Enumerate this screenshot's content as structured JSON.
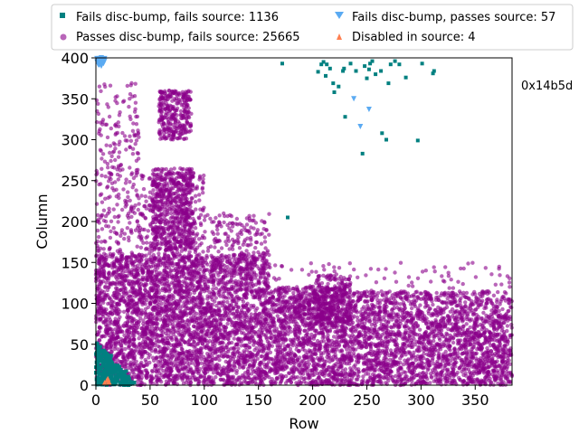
{
  "chart_data": {
    "type": "scatter",
    "xlabel": "Row",
    "ylabel": "Column",
    "xlim": [
      0,
      384
    ],
    "ylim": [
      0,
      400
    ],
    "x_ticks": [
      0,
      50,
      100,
      150,
      200,
      250,
      300,
      350
    ],
    "y_ticks": [
      0,
      50,
      100,
      150,
      200,
      250,
      300,
      350,
      400
    ],
    "grid": false,
    "legend_position": "top",
    "side_annotation": "0x14b5d",
    "series": [
      {
        "name": "Fails disc-bump, fails source: 1136",
        "marker": "square",
        "color": "#008080",
        "points": [
          [
            1,
            2
          ],
          [
            3,
            8
          ],
          [
            6,
            4
          ],
          [
            5,
            14
          ],
          [
            9,
            11
          ],
          [
            12,
            6
          ],
          [
            15,
            3
          ],
          [
            2,
            22
          ],
          [
            8,
            18
          ],
          [
            11,
            20
          ],
          [
            14,
            15
          ],
          [
            18,
            10
          ],
          [
            20,
            5
          ],
          [
            4,
            30
          ],
          [
            7,
            26
          ],
          [
            10,
            28
          ],
          [
            13,
            24
          ],
          [
            16,
            19
          ],
          [
            19,
            16
          ],
          [
            22,
            12
          ],
          [
            24,
            8
          ],
          [
            3,
            38
          ],
          [
            6,
            35
          ],
          [
            9,
            33
          ],
          [
            12,
            31
          ],
          [
            15,
            27
          ],
          [
            18,
            23
          ],
          [
            21,
            19
          ],
          [
            25,
            14
          ],
          [
            27,
            9
          ],
          [
            2,
            44
          ],
          [
            5,
            42
          ],
          [
            8,
            40
          ],
          [
            11,
            37
          ],
          [
            4,
            47
          ],
          [
            29,
            5
          ],
          [
            26,
            3
          ],
          [
            23,
            2
          ],
          [
            17,
            1
          ],
          [
            30,
            2
          ],
          [
            1,
            15
          ],
          [
            2,
            33
          ],
          [
            12,
            14
          ],
          [
            17,
            7
          ],
          [
            20,
            24
          ],
          [
            7,
            12
          ],
          [
            31,
            7
          ],
          [
            33,
            4
          ],
          [
            28,
            17
          ],
          [
            14,
            36
          ],
          [
            172,
            393
          ],
          [
            177,
            205
          ],
          [
            205,
            383
          ],
          [
            208,
            392
          ],
          [
            210,
            395
          ],
          [
            213,
            392
          ],
          [
            216,
            387
          ],
          [
            219,
            369
          ],
          [
            212,
            378
          ],
          [
            220,
            358
          ],
          [
            224,
            365
          ],
          [
            228,
            384
          ],
          [
            229,
            387
          ],
          [
            230,
            328
          ],
          [
            235,
            393
          ],
          [
            240,
            384
          ],
          [
            246,
            283
          ],
          [
            248,
            390
          ],
          [
            250,
            375
          ],
          [
            252,
            386
          ],
          [
            253,
            393
          ],
          [
            255,
            396
          ],
          [
            258,
            380
          ],
          [
            263,
            384
          ],
          [
            264,
            308
          ],
          [
            268,
            300
          ],
          [
            270,
            369
          ],
          [
            272,
            392
          ],
          [
            276,
            396
          ],
          [
            280,
            392
          ],
          [
            286,
            376
          ],
          [
            297,
            299
          ],
          [
            301,
            393
          ],
          [
            311,
            381
          ],
          [
            312,
            384
          ]
        ]
      },
      {
        "name": "Passes disc-bump, fails source: 25665",
        "marker": "circle",
        "color": "#8b008b",
        "points": []
      },
      {
        "name": "Fails disc-bump, passes source: 57",
        "marker": "triangle-down",
        "color": "#5aaaf2",
        "points": [
          [
            1,
            395
          ],
          [
            2,
            398
          ],
          [
            3,
            396
          ],
          [
            4,
            397
          ],
          [
            5,
            394
          ],
          [
            6,
            398
          ],
          [
            7,
            397
          ],
          [
            8,
            396
          ],
          [
            2,
            392
          ],
          [
            4,
            393
          ],
          [
            6,
            394
          ],
          [
            1,
            399
          ],
          [
            3,
            399
          ],
          [
            5,
            400
          ],
          [
            8,
            399
          ],
          [
            7,
            393
          ],
          [
            3,
            391
          ],
          [
            5,
            390
          ],
          [
            238,
            350
          ],
          [
            244,
            316
          ],
          [
            252,
            337
          ]
        ]
      },
      {
        "name": "Disabled in source: 4",
        "marker": "triangle-up",
        "color": "#ff7f50",
        "points": [
          [
            8,
            3
          ],
          [
            10,
            6
          ],
          [
            12,
            4
          ],
          [
            11,
            8
          ]
        ]
      }
    ]
  }
}
